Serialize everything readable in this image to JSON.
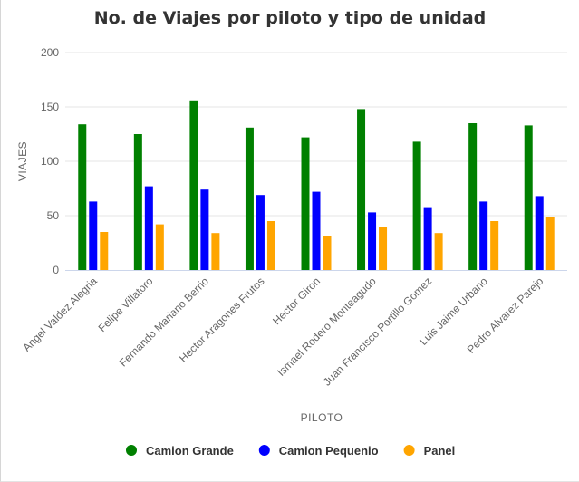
{
  "chart_data": {
    "type": "bar",
    "title": "No. de Viajes por piloto y tipo de unidad",
    "xlabel": "PILOTO",
    "ylabel": "VIAJES",
    "ylim": [
      0,
      200
    ],
    "yticks": [
      0,
      50,
      100,
      150,
      200
    ],
    "grid": true,
    "legend_position": "bottom",
    "categories": [
      "Angel Valdez Alegria",
      "Felipe Villatoro",
      "Fernando Mariano Berrio",
      "Hector Aragones Frutos",
      "Hector Giron",
      "Ismael Rodero Monteagudo",
      "Juan Francisco Portillo Gomez",
      "Luis Jaime Urbano",
      "Pedro Alvarez Parejo"
    ],
    "series": [
      {
        "name": "Camion Grande",
        "color": "#008000",
        "values": [
          134,
          125,
          156,
          131,
          122,
          148,
          118,
          135,
          133
        ]
      },
      {
        "name": "Camion Pequenio",
        "color": "#0000ff",
        "values": [
          63,
          77,
          74,
          69,
          72,
          53,
          57,
          63,
          68
        ]
      },
      {
        "name": "Panel",
        "color": "#ffa500",
        "values": [
          35,
          42,
          34,
          45,
          31,
          40,
          34,
          45,
          49
        ]
      }
    ]
  }
}
